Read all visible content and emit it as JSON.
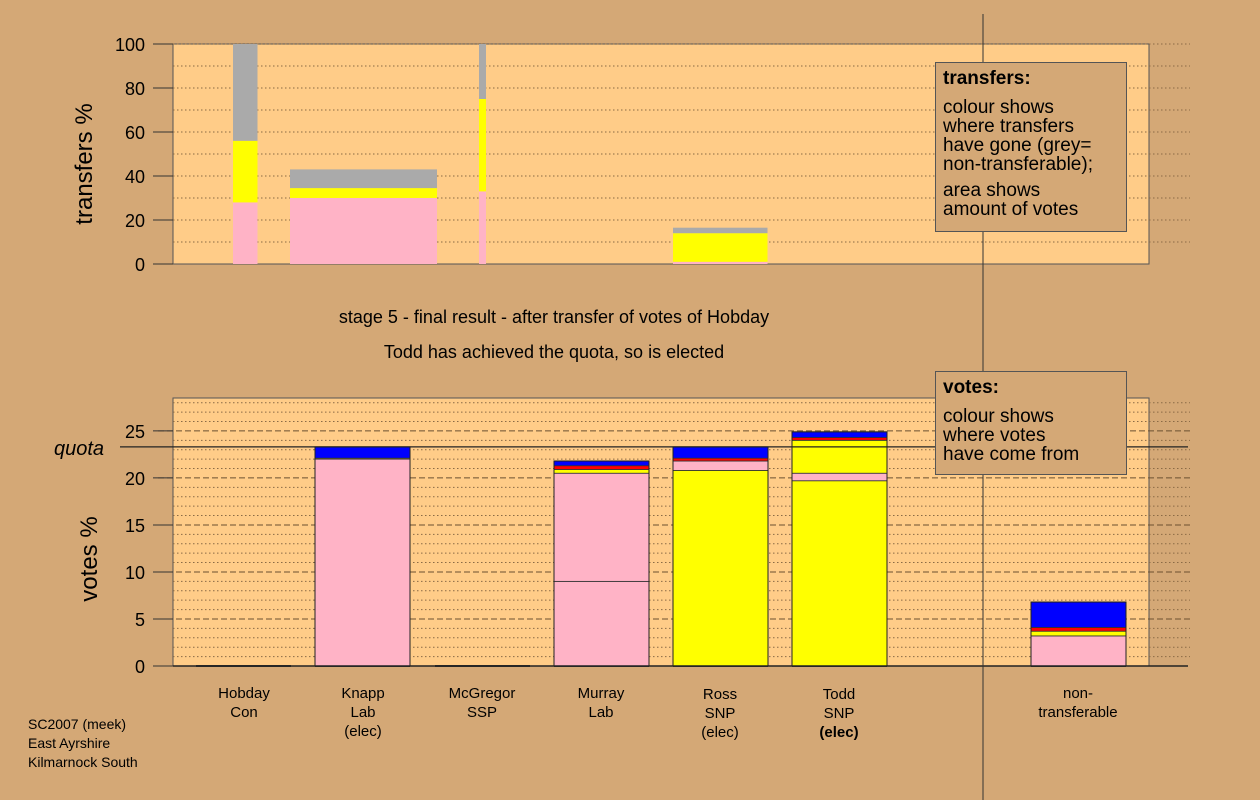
{
  "colors": {
    "background": "#d4a876",
    "plot": "#ffcc88",
    "Lab": "#ffb3c6",
    "SNP": "#ffff00",
    "Con": "#0000ff",
    "SSP": "#ff0000",
    "non_transferable": "#aaaaaa"
  },
  "captions": {
    "line1": "stage 5 - final result - after transfer of votes of Hobday",
    "line2": "Todd has achieved the quota, so is elected"
  },
  "transfers_legend": {
    "title": "transfers:",
    "lines1": [
      "colour shows",
      "where transfers",
      "have gone (grey=",
      "non-transferable);"
    ],
    "lines2": [
      "area shows",
      "amount of votes"
    ]
  },
  "votes_legend": {
    "title": "votes:",
    "lines": [
      "colour shows",
      "where votes",
      "have come from"
    ]
  },
  "footer": [
    "SC2007 (meek)",
    "East Ayrshire",
    "Kilmarnock South"
  ],
  "candidates": [
    {
      "name": "Hobday",
      "party": "Con",
      "status": ""
    },
    {
      "name": "Knapp",
      "party": "Lab",
      "status": "(elec)"
    },
    {
      "name": "McGregor",
      "party": "SSP",
      "status": ""
    },
    {
      "name": "Murray",
      "party": "Lab",
      "status": ""
    },
    {
      "name": "Ross",
      "party": "SNP",
      "status": "(elec)"
    },
    {
      "name": "Todd",
      "party": "SNP",
      "status": "(elec)"
    },
    {
      "name": "non-",
      "party": "transferable",
      "status": ""
    }
  ],
  "chart_data": [
    {
      "type": "bar",
      "ylabel": "transfers %",
      "ylim": [
        0,
        100
      ],
      "yticks": [
        0,
        20,
        40,
        60,
        80,
        100
      ],
      "grid": "dotted",
      "bars": [
        {
          "stage": 1,
          "width_share": 0.7,
          "segments": [
            {
              "color": "Lab",
              "value": 28
            },
            {
              "color": "SNP",
              "value": 28
            },
            {
              "color": "non_transferable",
              "value": 44
            }
          ]
        },
        {
          "stage": 2,
          "width_share": 4.2,
          "segments": [
            {
              "color": "Lab",
              "value": 30
            },
            {
              "color": "SNP",
              "value": 4.5
            },
            {
              "color": "non_transferable",
              "value": 8.5
            }
          ]
        },
        {
          "stage": 3,
          "width_share": 0.2,
          "segments": [
            {
              "color": "Lab",
              "value": 33
            },
            {
              "color": "SNP",
              "value": 42
            },
            {
              "color": "non_transferable",
              "value": 25
            }
          ]
        },
        {
          "stage": 4,
          "width_share": 2.7,
          "segments": [
            {
              "color": "Lab",
              "value": 1
            },
            {
              "color": "SNP",
              "value": 13
            },
            {
              "color": "non_transferable",
              "value": 2.5
            }
          ]
        }
      ]
    },
    {
      "type": "bar",
      "ylabel": "votes %",
      "ylim": [
        0,
        28.5
      ],
      "yticks": [
        0,
        5,
        10,
        15,
        20,
        25
      ],
      "quota": 23.3,
      "quota_label": "quota",
      "grid": "dashed",
      "categories": [
        "Hobday Con",
        "Knapp Lab",
        "McGregor SSP",
        "Murray Lab",
        "Ross SNP",
        "Todd SNP",
        "non-transferable"
      ],
      "series": [
        {
          "candidate": "Hobday",
          "segments": []
        },
        {
          "candidate": "Knapp",
          "segments": [
            {
              "color": "Lab",
              "value": 22.0
            },
            {
              "color": "SNP",
              "value": 0.1
            },
            {
              "color": "Con",
              "value": 1.2
            }
          ]
        },
        {
          "candidate": "McGregor",
          "segments": []
        },
        {
          "candidate": "Murray",
          "segments": [
            {
              "color": "Lab",
              "value": 9.0
            },
            {
              "color": "Lab",
              "value": 11.5
            },
            {
              "color": "SNP",
              "value": 0.4
            },
            {
              "color": "SSP",
              "value": 0.4
            },
            {
              "color": "Con",
              "value": 0.5
            }
          ]
        },
        {
          "candidate": "Ross",
          "segments": [
            {
              "color": "SNP",
              "value": 20.8
            },
            {
              "color": "Lab",
              "value": 1.0
            },
            {
              "color": "SSP",
              "value": 0.3
            },
            {
              "color": "Con",
              "value": 1.2
            }
          ]
        },
        {
          "candidate": "Todd",
          "segments": [
            {
              "color": "SNP",
              "value": 19.7
            },
            {
              "color": "Lab",
              "value": 0.8
            },
            {
              "color": "SNP",
              "value": 3.5
            },
            {
              "color": "SSP",
              "value": 0.3
            },
            {
              "color": "Con",
              "value": 0.6
            }
          ]
        },
        {
          "candidate": "non-transferable",
          "segments": [
            {
              "color": "Lab",
              "value": 3.2
            },
            {
              "color": "SNP",
              "value": 0.5
            },
            {
              "color": "SSP",
              "value": 0.4
            },
            {
              "color": "Con",
              "value": 2.7
            }
          ]
        }
      ]
    }
  ]
}
